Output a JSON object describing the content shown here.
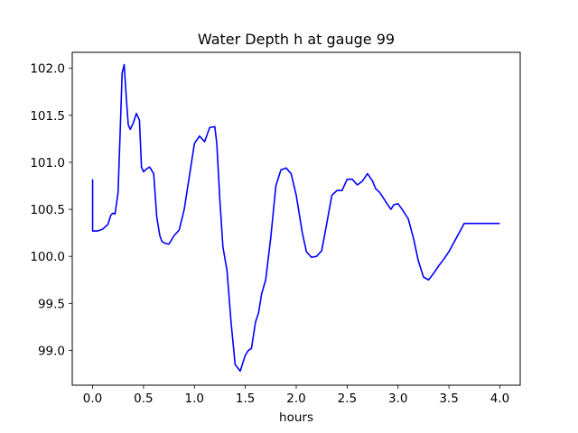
{
  "chart_data": {
    "type": "line",
    "title": "Water Depth h at gauge 99",
    "xlabel": "hours",
    "ylabel": "",
    "xlim": [
      -0.2,
      4.2
    ],
    "ylim": [
      98.63,
      102.17
    ],
    "xticks": [
      0.0,
      0.5,
      1.0,
      1.5,
      2.0,
      2.5,
      3.0,
      3.5,
      4.0
    ],
    "xtick_labels": [
      "0.0",
      "0.5",
      "1.0",
      "1.5",
      "2.0",
      "2.5",
      "3.0",
      "3.5",
      "4.0"
    ],
    "yticks": [
      99.0,
      99.5,
      100.0,
      100.5,
      101.0,
      101.5,
      102.0
    ],
    "ytick_labels": [
      "99.0",
      "99.5",
      "100.0",
      "100.5",
      "101.0",
      "101.5",
      "102.0"
    ],
    "grid": false,
    "legend": "none",
    "series": [
      {
        "color": "#0000ff",
        "x": [
          0.0,
          0.0,
          0.05,
          0.1,
          0.15,
          0.18,
          0.2,
          0.22,
          0.25,
          0.27,
          0.29,
          0.31,
          0.33,
          0.35,
          0.37,
          0.4,
          0.43,
          0.46,
          0.48,
          0.5,
          0.53,
          0.56,
          0.6,
          0.63,
          0.66,
          0.68,
          0.71,
          0.75,
          0.8,
          0.85,
          0.9,
          0.95,
          1.0,
          1.05,
          1.1,
          1.15,
          1.2,
          1.22,
          1.25,
          1.28,
          1.32,
          1.36,
          1.4,
          1.45,
          1.5,
          1.53,
          1.56,
          1.6,
          1.63,
          1.66,
          1.7,
          1.75,
          1.8,
          1.85,
          1.9,
          1.95,
          2.0,
          2.03,
          2.06,
          2.1,
          2.15,
          2.2,
          2.25,
          2.3,
          2.35,
          2.4,
          2.45,
          2.5,
          2.55,
          2.6,
          2.65,
          2.7,
          2.75,
          2.78,
          2.82,
          2.88,
          2.93,
          2.96,
          3.0,
          3.04,
          3.1,
          3.15,
          3.2,
          3.25,
          3.3,
          3.35,
          3.4,
          3.45,
          3.5,
          3.55,
          3.6,
          3.65,
          3.7,
          3.75,
          3.8,
          3.85,
          3.9,
          3.95,
          4.0
        ],
        "y": [
          100.82,
          100.27,
          100.27,
          100.29,
          100.34,
          100.44,
          100.46,
          100.45,
          100.68,
          101.3,
          101.95,
          102.04,
          101.7,
          101.4,
          101.35,
          101.42,
          101.52,
          101.45,
          100.95,
          100.9,
          100.93,
          100.95,
          100.88,
          100.42,
          100.22,
          100.16,
          100.14,
          100.13,
          100.22,
          100.28,
          100.5,
          100.85,
          101.2,
          101.28,
          101.22,
          101.37,
          101.38,
          101.2,
          100.6,
          100.1,
          99.85,
          99.3,
          98.85,
          98.78,
          98.95,
          99.0,
          99.02,
          99.3,
          99.4,
          99.6,
          99.75,
          100.2,
          100.75,
          100.92,
          100.94,
          100.88,
          100.65,
          100.45,
          100.25,
          100.05,
          99.99,
          100.0,
          100.06,
          100.35,
          100.65,
          100.7,
          100.7,
          100.82,
          100.82,
          100.76,
          100.8,
          100.88,
          100.8,
          100.72,
          100.68,
          100.58,
          100.5,
          100.55,
          100.56,
          100.5,
          100.4,
          100.2,
          99.95,
          99.78,
          99.75,
          99.82,
          99.9,
          99.97,
          100.05,
          100.15,
          100.25,
          100.35,
          100.35,
          100.35,
          100.35,
          100.35,
          100.35,
          100.35,
          100.35
        ]
      }
    ]
  }
}
